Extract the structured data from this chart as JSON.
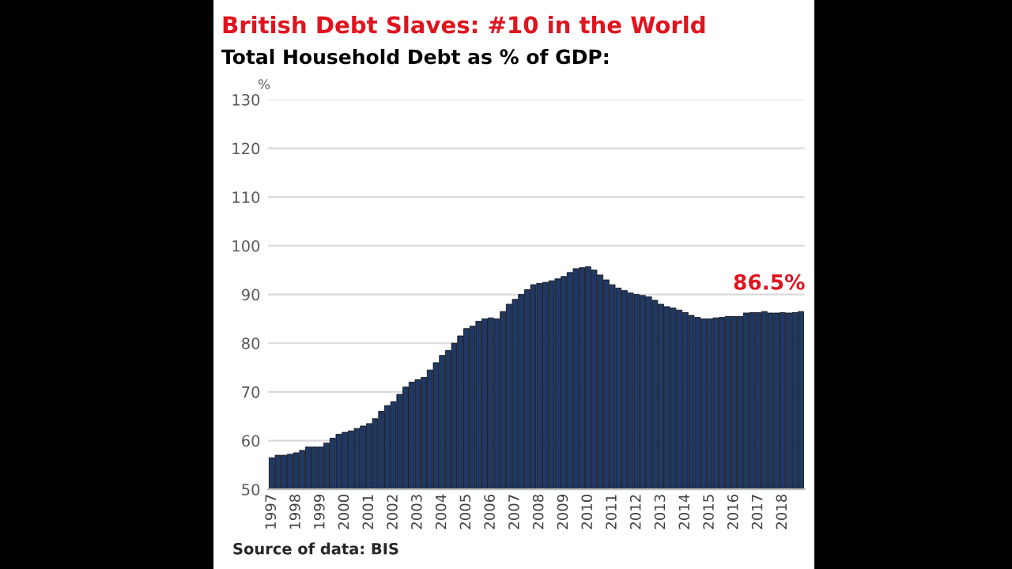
{
  "chart_data": {
    "type": "bar",
    "title": "British Debt Slaves: #10 in the World",
    "subtitle": "Total Household Debt as % of GDP:",
    "ylabel": "%",
    "categories": [
      "1997",
      null,
      null,
      null,
      "1998",
      null,
      null,
      null,
      "1999",
      null,
      null,
      null,
      "2000",
      null,
      null,
      null,
      "2001",
      null,
      null,
      null,
      "2002",
      null,
      null,
      null,
      "2003",
      null,
      null,
      null,
      "2004",
      null,
      null,
      null,
      "2005",
      null,
      null,
      null,
      "2006",
      null,
      null,
      null,
      "2007",
      null,
      null,
      null,
      "2008",
      null,
      null,
      null,
      "2009",
      null,
      null,
      null,
      "2010",
      null,
      null,
      null,
      "2011",
      null,
      null,
      null,
      "2012",
      null,
      null,
      null,
      "2013",
      null,
      null,
      null,
      "2014",
      null,
      null,
      null,
      "2015",
      null,
      null,
      null,
      "2016",
      null,
      null,
      null,
      "2017",
      null,
      null,
      null,
      "2018",
      null,
      null,
      null
    ],
    "values": [
      56.5,
      57,
      57,
      57.2,
      57.5,
      58,
      58.7,
      58.7,
      58.7,
      59.5,
      60.5,
      61.3,
      61.7,
      62,
      62.5,
      63,
      63.5,
      64.5,
      66,
      67.2,
      68,
      69.5,
      71,
      72,
      72.5,
      73,
      74.5,
      76,
      77.5,
      78.5,
      80,
      81.5,
      83,
      83.5,
      84.5,
      85,
      85.2,
      85,
      86.5,
      88,
      89,
      90,
      91,
      92,
      92.3,
      92.5,
      92.8,
      93.2,
      93.7,
      94.5,
      95.3,
      95.5,
      95.7,
      95,
      94,
      93,
      92,
      91.3,
      90.8,
      90.3,
      90,
      89.8,
      89.5,
      88.8,
      88,
      87.5,
      87.2,
      86.8,
      86.3,
      85.7,
      85.3,
      85,
      85,
      85.2,
      85.3,
      85.5,
      85.5,
      85.5,
      86.2,
      86.3,
      86.3,
      86.5,
      86.2,
      86.2,
      86.3,
      86.2,
      86.3,
      86.5
    ],
    "color": "#1f3864",
    "ylim": [
      50,
      130
    ],
    "yticks": [
      50,
      60,
      70,
      80,
      90,
      100,
      110,
      120,
      130
    ],
    "grid": "y",
    "annotations": [
      {
        "text": "86.5%",
        "y": 86.5
      },
      "Source of data: BIS"
    ]
  }
}
